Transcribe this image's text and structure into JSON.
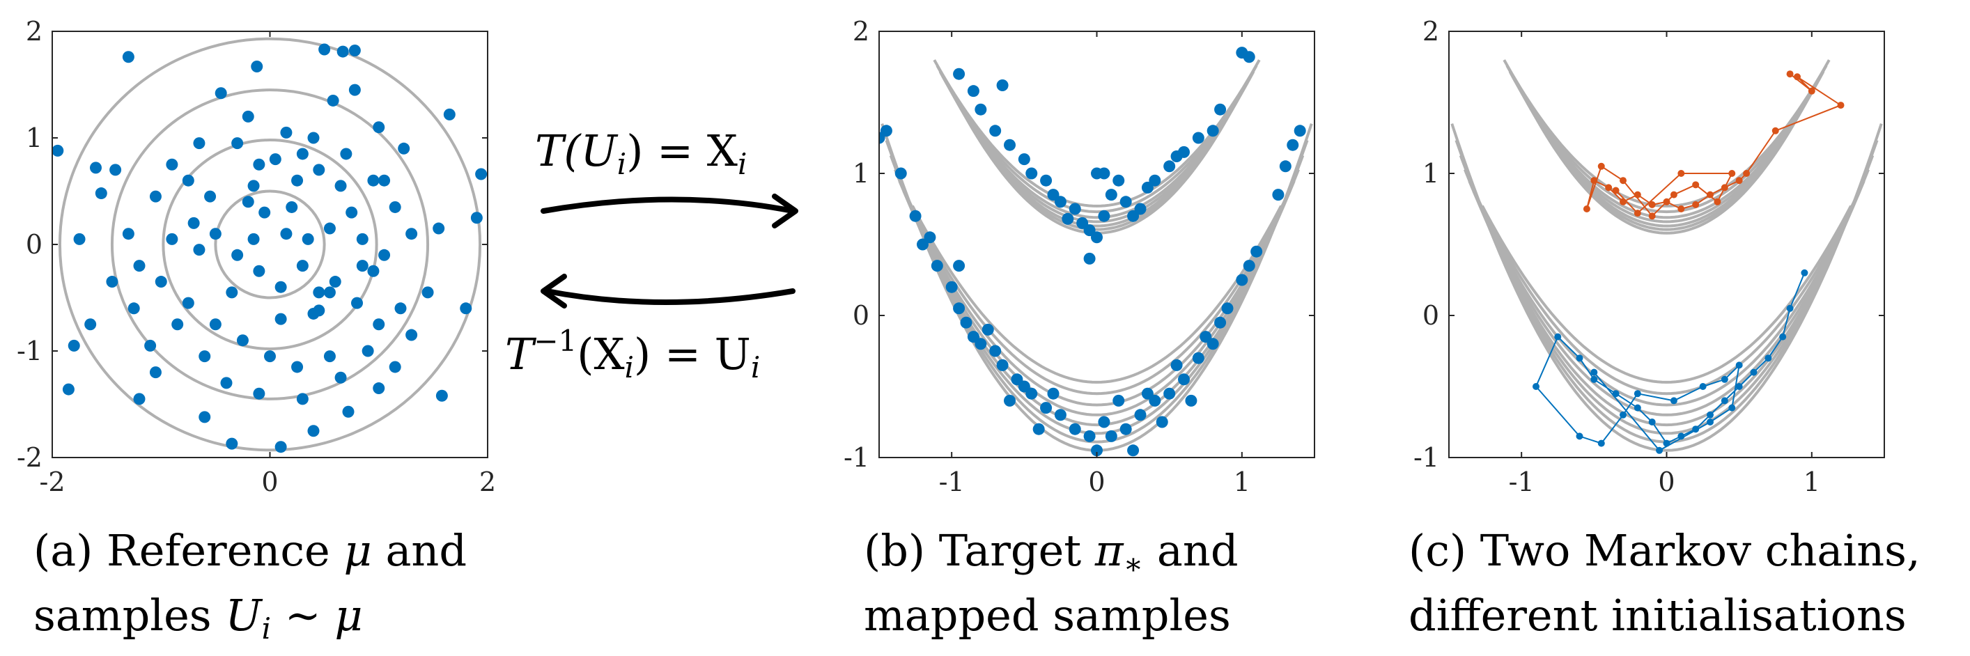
{
  "colors": {
    "blue": "#0072BD",
    "orange": "#D95319",
    "contour": "#B0B0B0",
    "frame": "#262626"
  },
  "arrows": {
    "top": {
      "lhs": "T(U",
      "sub": "i",
      "mid": ") = X",
      "sub2": "i"
    },
    "bottom": {
      "lhs": "T",
      "sup": "−1",
      "mid": "(X",
      "sub": "i",
      "mid2": ") = U",
      "sub2": "i"
    }
  },
  "captions": {
    "a": {
      "line1_text": "(a) Reference ",
      "line1_sym": "μ",
      "line1_end": " and",
      "line2_text": "samples ",
      "line2_sym": "U",
      "line2_sub": "i",
      "line2_rel": " ∼ ",
      "line2_sym2": "μ"
    },
    "b": {
      "line1_text": "(b) Target ",
      "line1_sym": "π",
      "line1_sub": "∗",
      "line1_end": " and",
      "line2_text": "mapped samples"
    },
    "c": {
      "line1_text": "(c) Two Markov chains,",
      "line2_text": "different initialisations"
    }
  },
  "chart_data": [
    {
      "panel": "a",
      "type": "scatter",
      "title": "",
      "xlabel": "",
      "ylabel": "",
      "xlim": [
        -2,
        2
      ],
      "ylim": [
        -2,
        2
      ],
      "xticks": [
        "-2",
        "0",
        "2"
      ],
      "yticks": [
        "2",
        "1",
        "0",
        "-1",
        "-2"
      ],
      "contours": {
        "shape": "circles",
        "radii": [
          0.5,
          0.98,
          1.45,
          1.93
        ]
      },
      "series": [
        {
          "points": [
            [
              -1.95,
              0.88
            ],
            [
              -1.3,
              1.76
            ],
            [
              -0.12,
              1.67
            ],
            [
              0.5,
              1.83
            ],
            [
              0.67,
              1.81
            ],
            [
              0.78,
              1.82
            ],
            [
              0.78,
              1.45
            ],
            [
              -0.45,
              1.42
            ],
            [
              0.58,
              1.35
            ],
            [
              1.23,
              0.9
            ],
            [
              1.65,
              1.22
            ],
            [
              1.94,
              0.66
            ],
            [
              1.9,
              0.25
            ],
            [
              1.55,
              0.15
            ],
            [
              1.8,
              -0.6
            ],
            [
              1.58,
              -1.42
            ],
            [
              1.0,
              -1.35
            ],
            [
              0.72,
              -1.57
            ],
            [
              0.4,
              -1.75
            ],
            [
              0.1,
              -1.9
            ],
            [
              -0.35,
              -1.87
            ],
            [
              -0.6,
              -1.62
            ],
            [
              -1.2,
              -1.45
            ],
            [
              -1.85,
              -1.36
            ],
            [
              -1.8,
              -0.95
            ],
            [
              -1.65,
              -0.75
            ],
            [
              -1.75,
              0.05
            ],
            [
              -1.55,
              0.48
            ],
            [
              -1.6,
              0.72
            ],
            [
              -1.42,
              0.7
            ],
            [
              -1.3,
              0.1
            ],
            [
              -1.05,
              0.45
            ],
            [
              -0.9,
              0.75
            ],
            [
              -0.65,
              0.95
            ],
            [
              -0.3,
              0.95
            ],
            [
              -0.1,
              0.75
            ],
            [
              0.05,
              0.8
            ],
            [
              0.25,
              0.6
            ],
            [
              0.45,
              0.7
            ],
            [
              0.7,
              0.85
            ],
            [
              0.95,
              0.6
            ],
            [
              1.15,
              0.35
            ],
            [
              1.3,
              0.1
            ],
            [
              1.05,
              -0.1
            ],
            [
              0.85,
              -0.2
            ],
            [
              0.6,
              -0.35
            ],
            [
              0.4,
              -0.65
            ],
            [
              0.45,
              -0.62
            ],
            [
              0.55,
              -0.45
            ],
            [
              0.8,
              -0.55
            ],
            [
              1.0,
              -0.75
            ],
            [
              1.2,
              -0.6
            ],
            [
              1.45,
              -0.45
            ],
            [
              1.3,
              -0.85
            ],
            [
              0.9,
              -1.0
            ],
            [
              0.65,
              -1.25
            ],
            [
              0.25,
              -1.15
            ],
            [
              0.0,
              -1.05
            ],
            [
              -0.25,
              -0.9
            ],
            [
              -0.5,
              -0.75
            ],
            [
              -0.75,
              -0.55
            ],
            [
              -1.0,
              -0.35
            ],
            [
              -1.2,
              -0.2
            ],
            [
              -0.9,
              0.05
            ],
            [
              -0.7,
              0.2
            ],
            [
              -0.5,
              0.1
            ],
            [
              -0.3,
              -0.1
            ],
            [
              -0.1,
              -0.25
            ],
            [
              0.1,
              -0.4
            ],
            [
              0.3,
              -0.2
            ],
            [
              0.15,
              0.1
            ],
            [
              -0.05,
              0.3
            ],
            [
              -0.2,
              0.4
            ],
            [
              0.2,
              0.35
            ],
            [
              0.35,
              0.05
            ],
            [
              0.55,
              0.15
            ],
            [
              0.75,
              0.3
            ],
            [
              -0.55,
              0.45
            ],
            [
              -0.85,
              -0.75
            ],
            [
              -1.1,
              -0.95
            ],
            [
              -0.6,
              -1.05
            ],
            [
              -0.4,
              -1.3
            ],
            [
              -0.1,
              -1.4
            ],
            [
              0.3,
              -1.45
            ],
            [
              0.55,
              -1.05
            ],
            [
              1.15,
              -1.15
            ],
            [
              0.15,
              1.05
            ],
            [
              0.4,
              1.0
            ],
            [
              -0.2,
              1.2
            ],
            [
              -1.25,
              -0.6
            ],
            [
              -0.65,
              -0.05
            ],
            [
              0.1,
              -0.7
            ],
            [
              0.45,
              -0.45
            ],
            [
              -0.15,
              0.55
            ],
            [
              0.85,
              0.05
            ],
            [
              1.05,
              0.6
            ],
            [
              -1.45,
              -0.35
            ],
            [
              -0.35,
              -0.45
            ],
            [
              -0.75,
              0.6
            ],
            [
              0.65,
              0.55
            ],
            [
              1.0,
              1.1
            ],
            [
              -0.15,
              0.05
            ],
            [
              0.3,
              0.85
            ],
            [
              -1.05,
              -1.2
            ],
            [
              0.95,
              -0.25
            ]
          ]
        }
      ]
    },
    {
      "panel": "b",
      "type": "scatter",
      "title": "",
      "xlabel": "",
      "ylabel": "",
      "xlim": [
        -1.5,
        1.5
      ],
      "ylim": [
        -1,
        2
      ],
      "xticks": [
        "-1",
        "0",
        "1"
      ],
      "yticks": [
        "2",
        "1",
        "0",
        "-1"
      ],
      "contours": {
        "shape": "two parabolic bands",
        "upper": "y = 0.55 + 0.85 x^2 + offsets",
        "lower": "y = -0.6 + 0.85 x^2 + offsets"
      },
      "series": [
        {
          "points": [
            [
              -0.95,
              1.7
            ],
            [
              -0.85,
              1.58
            ],
            [
              -0.8,
              1.45
            ],
            [
              -0.7,
              1.3
            ],
            [
              -0.65,
              1.62
            ],
            [
              -0.6,
              1.2
            ],
            [
              -0.5,
              1.1
            ],
            [
              -0.45,
              1.0
            ],
            [
              -0.35,
              0.95
            ],
            [
              -0.3,
              0.85
            ],
            [
              -0.25,
              0.8
            ],
            [
              -0.15,
              0.75
            ],
            [
              -0.1,
              0.65
            ],
            [
              -0.05,
              0.6
            ],
            [
              0.0,
              0.55
            ],
            [
              0.05,
              0.7
            ],
            [
              0.1,
              0.85
            ],
            [
              0.15,
              0.95
            ],
            [
              0.2,
              0.8
            ],
            [
              0.25,
              0.7
            ],
            [
              0.3,
              0.75
            ],
            [
              0.35,
              0.9
            ],
            [
              0.4,
              0.95
            ],
            [
              0.5,
              1.05
            ],
            [
              0.55,
              1.12
            ],
            [
              0.6,
              1.15
            ],
            [
              0.7,
              1.25
            ],
            [
              0.8,
              1.3
            ],
            [
              0.85,
              1.45
            ],
            [
              1.0,
              1.85
            ],
            [
              1.05,
              1.82
            ],
            [
              -0.05,
              0.4
            ],
            [
              -0.2,
              0.68
            ],
            [
              0.0,
              1.0
            ],
            [
              0.05,
              1.0
            ],
            [
              -1.5,
              1.25
            ],
            [
              -1.45,
              1.3
            ],
            [
              -1.35,
              1.0
            ],
            [
              -1.25,
              0.7
            ],
            [
              -1.2,
              0.5
            ],
            [
              -1.1,
              0.35
            ],
            [
              -1.0,
              0.2
            ],
            [
              -0.95,
              0.05
            ],
            [
              -0.9,
              -0.05
            ],
            [
              -0.85,
              -0.15
            ],
            [
              -0.8,
              -0.2
            ],
            [
              -0.7,
              -0.25
            ],
            [
              -0.65,
              -0.35
            ],
            [
              -0.55,
              -0.45
            ],
            [
              -0.45,
              -0.55
            ],
            [
              -0.35,
              -0.65
            ],
            [
              -0.25,
              -0.7
            ],
            [
              -0.15,
              -0.8
            ],
            [
              -0.05,
              -0.85
            ],
            [
              0.0,
              -0.95
            ],
            [
              0.1,
              -0.85
            ],
            [
              0.2,
              -0.8
            ],
            [
              0.3,
              -0.7
            ],
            [
              0.4,
              -0.6
            ],
            [
              0.5,
              -0.55
            ],
            [
              0.6,
              -0.45
            ],
            [
              0.7,
              -0.3
            ],
            [
              0.8,
              -0.2
            ],
            [
              0.85,
              -0.05
            ],
            [
              0.9,
              0.05
            ],
            [
              1.0,
              0.25
            ],
            [
              1.05,
              0.35
            ],
            [
              1.1,
              0.45
            ],
            [
              1.25,
              0.85
            ],
            [
              1.3,
              1.05
            ],
            [
              1.35,
              1.2
            ],
            [
              1.4,
              1.3
            ],
            [
              -0.95,
              0.35
            ],
            [
              -0.75,
              -0.1
            ],
            [
              -0.5,
              -0.5
            ],
            [
              -0.3,
              -0.55
            ],
            [
              0.15,
              -0.6
            ],
            [
              0.35,
              -0.55
            ],
            [
              0.55,
              -0.35
            ],
            [
              0.75,
              -0.15
            ],
            [
              -1.15,
              0.55
            ],
            [
              -0.6,
              -0.6
            ],
            [
              0.05,
              -0.75
            ],
            [
              0.25,
              -0.95
            ],
            [
              -0.4,
              -0.8
            ],
            [
              0.45,
              -0.75
            ],
            [
              0.65,
              -0.6
            ]
          ]
        }
      ]
    },
    {
      "panel": "c",
      "type": "line",
      "title": "",
      "xlabel": "",
      "ylabel": "",
      "xlim": [
        -1.5,
        1.5
      ],
      "ylim": [
        -1,
        2
      ],
      "xticks": [
        "-1",
        "0",
        "1"
      ],
      "yticks": [
        "2",
        "1",
        "0",
        "-1"
      ],
      "contours": {
        "shape": "two parabolic bands (same as panel b)"
      },
      "series": [
        {
          "color": "orange",
          "points": [
            [
              0.85,
              1.7
            ],
            [
              1.0,
              1.58
            ],
            [
              0.9,
              1.68
            ],
            [
              1.2,
              1.48
            ],
            [
              0.75,
              1.3
            ],
            [
              0.55,
              1.0
            ],
            [
              0.5,
              0.95
            ],
            [
              0.4,
              0.9
            ],
            [
              0.3,
              0.85
            ],
            [
              0.2,
              0.78
            ],
            [
              0.1,
              0.75
            ],
            [
              0.0,
              0.8
            ],
            [
              -0.1,
              0.78
            ],
            [
              -0.2,
              0.85
            ],
            [
              -0.3,
              0.8
            ],
            [
              -0.4,
              0.9
            ],
            [
              -0.5,
              0.95
            ],
            [
              -0.55,
              0.75
            ],
            [
              -0.45,
              1.05
            ],
            [
              -0.3,
              0.95
            ],
            [
              -0.1,
              0.7
            ],
            [
              0.05,
              0.85
            ],
            [
              0.2,
              0.92
            ],
            [
              0.35,
              0.8
            ],
            [
              0.45,
              1.0
            ],
            [
              0.1,
              1.0
            ],
            [
              -0.2,
              0.72
            ],
            [
              -0.35,
              0.88
            ]
          ]
        },
        {
          "color": "blue",
          "points": [
            [
              0.95,
              0.3
            ],
            [
              0.85,
              0.05
            ],
            [
              0.8,
              -0.15
            ],
            [
              0.7,
              -0.3
            ],
            [
              0.6,
              -0.4
            ],
            [
              0.5,
              -0.5
            ],
            [
              0.4,
              -0.6
            ],
            [
              0.3,
              -0.7
            ],
            [
              0.2,
              -0.8
            ],
            [
              0.1,
              -0.85
            ],
            [
              0.0,
              -0.9
            ],
            [
              -0.1,
              -0.75
            ],
            [
              -0.2,
              -0.65
            ],
            [
              -0.35,
              -0.55
            ],
            [
              -0.5,
              -0.45
            ],
            [
              -0.6,
              -0.3
            ],
            [
              -0.75,
              -0.15
            ],
            [
              -0.9,
              -0.5
            ],
            [
              -0.6,
              -0.85
            ],
            [
              -0.45,
              -0.9
            ],
            [
              -0.3,
              -0.7
            ],
            [
              -0.2,
              -0.55
            ],
            [
              0.05,
              -0.6
            ],
            [
              0.25,
              -0.5
            ],
            [
              0.4,
              -0.45
            ],
            [
              0.5,
              -0.35
            ],
            [
              0.45,
              -0.65
            ],
            [
              0.3,
              -0.75
            ],
            [
              -0.05,
              -0.95
            ],
            [
              -0.5,
              -0.4
            ]
          ]
        }
      ]
    }
  ]
}
